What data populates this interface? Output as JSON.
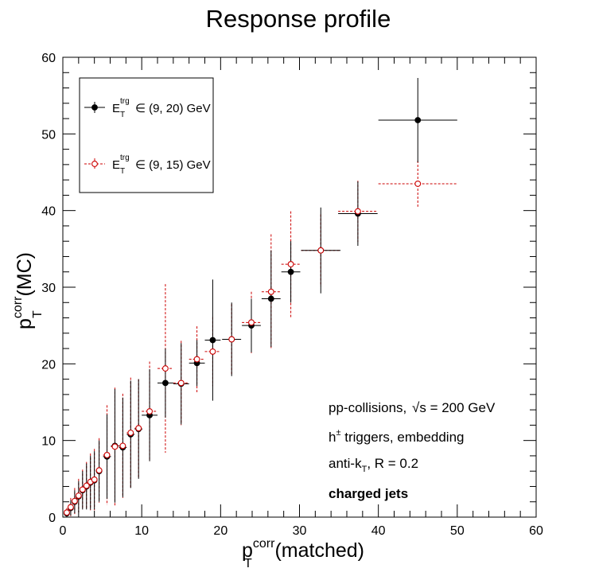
{
  "chart_data": {
    "type": "scatter",
    "title": "Response profile",
    "xlabel": {
      "main": "p",
      "sup": "corr",
      "sub": "T",
      "rest": "(matched)"
    },
    "ylabel": {
      "main": "p",
      "sup": "corr",
      "sub": "T",
      "rest": "(MC)"
    },
    "xlim": [
      0,
      60
    ],
    "ylim": [
      0,
      60
    ],
    "xticks": [
      "0",
      "10",
      "20",
      "30",
      "40",
      "50",
      "60"
    ],
    "yticks": [
      "0",
      "10",
      "20",
      "30",
      "40",
      "50",
      "60"
    ],
    "grid": false,
    "legend_position": "top-left",
    "series": [
      {
        "name": {
          "main": "E",
          "sup": "trg",
          "sub": "T",
          "rest": " ∈ (9, 20) GeV"
        },
        "color": "#000000",
        "marker": "filled-circle",
        "line": "solid",
        "points": [
          {
            "x": 0.5,
            "y": 0.5,
            "xerr": 0.25,
            "yerr": 0.5
          },
          {
            "x": 1.0,
            "y": 1.2,
            "xerr": 0.25,
            "yerr": 1.0
          },
          {
            "x": 1.5,
            "y": 2.0,
            "xerr": 0.25,
            "yerr": 1.5
          },
          {
            "x": 2.0,
            "y": 2.7,
            "xerr": 0.25,
            "yerr": 2.0
          },
          {
            "x": 2.5,
            "y": 3.5,
            "xerr": 0.25,
            "yerr": 2.5
          },
          {
            "x": 3.0,
            "y": 4.0,
            "xerr": 0.25,
            "yerr": 3.0
          },
          {
            "x": 3.5,
            "y": 4.5,
            "xerr": 0.25,
            "yerr": 3.5
          },
          {
            "x": 4.0,
            "y": 4.8,
            "xerr": 0.25,
            "yerr": 3.8
          },
          {
            "x": 4.6,
            "y": 6.0,
            "xerr": 0.4,
            "yerr": 4.0
          },
          {
            "x": 5.6,
            "y": 7.9,
            "xerr": 0.5,
            "yerr": 5.5
          },
          {
            "x": 6.6,
            "y": 9.3,
            "xerr": 0.5,
            "yerr": 7.4
          },
          {
            "x": 7.6,
            "y": 9.1,
            "xerr": 0.5,
            "yerr": 6.5
          },
          {
            "x": 8.6,
            "y": 10.8,
            "xerr": 0.5,
            "yerr": 7.0
          },
          {
            "x": 9.6,
            "y": 11.5,
            "xerr": 0.5,
            "yerr": 6.5
          },
          {
            "x": 11.0,
            "y": 13.3,
            "xerr": 1.0,
            "yerr": 6.0
          },
          {
            "x": 13.0,
            "y": 17.5,
            "xerr": 1.0,
            "yerr": 4.5
          },
          {
            "x": 15.0,
            "y": 17.4,
            "xerr": 1.0,
            "yerr": 5.3
          },
          {
            "x": 17.0,
            "y": 20.1,
            "xerr": 1.0,
            "yerr": 3.0
          },
          {
            "x": 19.0,
            "y": 23.1,
            "xerr": 1.0,
            "yerr": 7.9
          },
          {
            "x": 21.4,
            "y": 23.2,
            "xerr": 1.2,
            "yerr": 4.8
          },
          {
            "x": 23.9,
            "y": 25.0,
            "xerr": 1.2,
            "yerr": 3.5
          },
          {
            "x": 26.4,
            "y": 28.5,
            "xerr": 1.2,
            "yerr": 6.3
          },
          {
            "x": 28.9,
            "y": 32.0,
            "xerr": 1.2,
            "yerr": 4.0
          },
          {
            "x": 32.7,
            "y": 34.8,
            "xerr": 2.5,
            "yerr": 5.6
          },
          {
            "x": 37.4,
            "y": 39.6,
            "xerr": 2.5,
            "yerr": 4.2
          },
          {
            "x": 45.0,
            "y": 51.8,
            "xerr": 5.0,
            "yerr": 5.5
          }
        ]
      },
      {
        "name": {
          "main": "E",
          "sup": "trg",
          "sub": "T",
          "rest": " ∈ (9, 15) GeV"
        },
        "color": "#cc0000",
        "marker": "open-circle",
        "line": "dashed",
        "points": [
          {
            "x": 0.5,
            "y": 0.6,
            "xerr": 0.25,
            "yerr": 0.6
          },
          {
            "x": 1.0,
            "y": 1.3,
            "xerr": 0.25,
            "yerr": 1.2
          },
          {
            "x": 1.5,
            "y": 2.1,
            "xerr": 0.25,
            "yerr": 1.7
          },
          {
            "x": 2.0,
            "y": 2.8,
            "xerr": 0.25,
            "yerr": 2.2
          },
          {
            "x": 2.5,
            "y": 3.6,
            "xerr": 0.25,
            "yerr": 2.6
          },
          {
            "x": 3.0,
            "y": 4.1,
            "xerr": 0.25,
            "yerr": 3.1
          },
          {
            "x": 3.5,
            "y": 4.6,
            "xerr": 0.25,
            "yerr": 3.7
          },
          {
            "x": 4.0,
            "y": 4.9,
            "xerr": 0.25,
            "yerr": 4.0
          },
          {
            "x": 4.6,
            "y": 6.1,
            "xerr": 0.4,
            "yerr": 4.2
          },
          {
            "x": 5.6,
            "y": 8.1,
            "xerr": 0.5,
            "yerr": 6.5
          },
          {
            "x": 6.6,
            "y": 9.2,
            "xerr": 0.5,
            "yerr": 7.7
          },
          {
            "x": 7.6,
            "y": 9.3,
            "xerr": 0.5,
            "yerr": 6.8
          },
          {
            "x": 8.6,
            "y": 11.0,
            "xerr": 0.5,
            "yerr": 7.2
          },
          {
            "x": 9.6,
            "y": 11.6,
            "xerr": 0.5,
            "yerr": 6.4
          },
          {
            "x": 11.0,
            "y": 13.8,
            "xerr": 1.0,
            "yerr": 6.5
          },
          {
            "x": 13.0,
            "y": 19.4,
            "xerr": 1.0,
            "yerr": 11.0
          },
          {
            "x": 15.0,
            "y": 17.5,
            "xerr": 1.0,
            "yerr": 5.5
          },
          {
            "x": 17.0,
            "y": 20.6,
            "xerr": 1.0,
            "yerr": 4.3
          },
          {
            "x": 19.0,
            "y": 21.6,
            "xerr": 1.0,
            "yerr": 4.5
          },
          {
            "x": 21.4,
            "y": 23.2,
            "xerr": 1.2,
            "yerr": 4.6
          },
          {
            "x": 23.9,
            "y": 25.4,
            "xerr": 1.2,
            "yerr": 4.0
          },
          {
            "x": 26.4,
            "y": 29.4,
            "xerr": 1.2,
            "yerr": 7.5
          },
          {
            "x": 28.9,
            "y": 33.0,
            "xerr": 1.2,
            "yerr": 6.9
          },
          {
            "x": 32.7,
            "y": 34.8,
            "xerr": 2.5,
            "yerr": 4.7
          },
          {
            "x": 37.4,
            "y": 39.9,
            "xerr": 2.5,
            "yerr": 4.0
          },
          {
            "x": 45.0,
            "y": 43.5,
            "xerr": 5.0,
            "yerr": 3.0
          }
        ]
      }
    ],
    "annotations": {
      "collisions": {
        "pre": "pp-collisions, ",
        "sqrt": "s",
        "post": " = 200 GeV"
      },
      "triggers": {
        "pre": "h",
        "sup": "±",
        "post": " triggers, embedding"
      },
      "algorithm": {
        "pre": "anti-k",
        "sub": "T",
        "post": ", R = 0.2"
      },
      "jets": "charged jets"
    }
  }
}
